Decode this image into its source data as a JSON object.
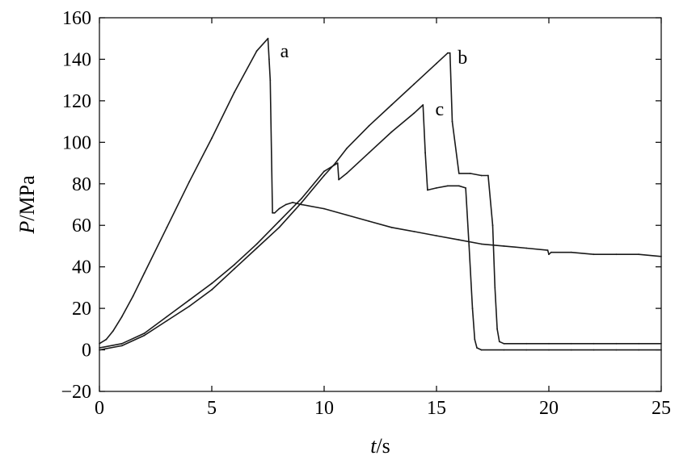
{
  "chart_data": {
    "type": "line",
    "title": "",
    "xlabel": {
      "var": "t",
      "unit": "/s"
    },
    "ylabel": {
      "var": "P",
      "unit": "/MPa"
    },
    "xlim": [
      0,
      25
    ],
    "ylim": [
      -20,
      160
    ],
    "x_ticks": [
      0,
      5,
      10,
      15,
      20,
      25
    ],
    "y_ticks": [
      -20,
      0,
      20,
      40,
      60,
      80,
      100,
      120,
      140,
      160
    ],
    "x_tick_labels": [
      "0",
      "5",
      "10",
      "15",
      "20",
      "25"
    ],
    "y_tick_labels": [
      "−20",
      "0",
      "20",
      "40",
      "60",
      "80",
      "100",
      "120",
      "140",
      "160"
    ],
    "grid": false,
    "legend": "none",
    "series": [
      {
        "name": "a",
        "label_at": [
          7.9,
          144
        ],
        "x": [
          0,
          0.3,
          0.6,
          1.0,
          1.5,
          2,
          3,
          4,
          5,
          6,
          7,
          7.5,
          7.55,
          7.6,
          7.7,
          7.8,
          8.0,
          8.3,
          8.6,
          9.0,
          10,
          11,
          12,
          13,
          14,
          15,
          16,
          17,
          18,
          19,
          19.95,
          20.0,
          20.1,
          21,
          22,
          23,
          24,
          25
        ],
        "y": [
          3,
          5,
          9,
          16,
          26,
          37,
          59,
          81,
          102,
          124,
          144,
          150,
          140,
          130,
          66,
          66,
          68,
          70,
          71,
          70,
          68,
          65,
          62,
          59,
          57,
          55,
          53,
          51,
          50,
          49,
          48,
          46,
          47,
          47,
          46,
          46,
          46,
          45
        ]
      },
      {
        "name": "b",
        "label_at": [
          15.8,
          141
        ],
        "x": [
          0,
          1,
          2,
          3,
          4,
          5,
          6,
          7,
          8,
          9,
          10,
          10.5,
          11,
          12,
          13,
          14,
          15,
          15.5,
          15.6,
          15.7,
          16,
          16.5,
          17,
          17.3,
          17.5,
          17.6,
          17.7,
          17.8,
          18,
          19,
          20,
          21,
          22,
          23,
          24,
          25
        ],
        "y": [
          0,
          2,
          7,
          14,
          21,
          29,
          39,
          49,
          59,
          71,
          84,
          90,
          97,
          108,
          118,
          128,
          138,
          143,
          143,
          110,
          85,
          85,
          84,
          84,
          60,
          30,
          10,
          4,
          3,
          3,
          3,
          3,
          3,
          3,
          3,
          3
        ]
      },
      {
        "name": "c",
        "label_at": [
          14.8,
          116
        ],
        "x": [
          0,
          1,
          2,
          3,
          4,
          5,
          6,
          7,
          8,
          9,
          10,
          10.6,
          10.65,
          11,
          12,
          13,
          14,
          14.4,
          14.5,
          14.6,
          15,
          15.5,
          16,
          16.3,
          16.45,
          16.6,
          16.7,
          16.8,
          17,
          18,
          19,
          20,
          21,
          22,
          23,
          24,
          25
        ],
        "y": [
          1,
          3,
          8,
          16,
          24,
          32,
          41,
          51,
          62,
          73,
          86,
          90,
          82,
          85,
          95,
          105,
          114,
          118,
          95,
          77,
          78,
          79,
          79,
          78,
          50,
          20,
          5,
          1,
          0,
          0,
          0,
          0,
          0,
          0,
          0,
          0,
          0
        ]
      }
    ]
  }
}
